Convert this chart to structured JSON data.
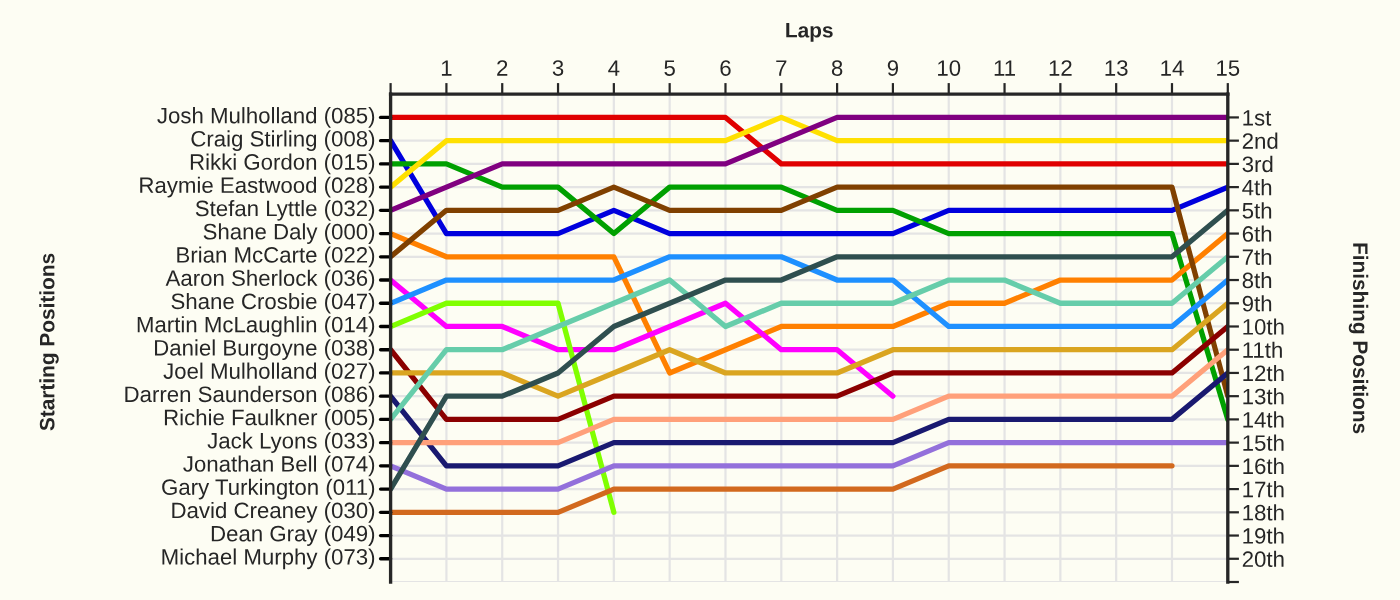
{
  "chart_data": {
    "type": "line",
    "xlabel": "Laps",
    "ylabel": "Finishing Positions",
    "annotations": [
      "Starting Positions",
      "Dean Gray (049)",
      "Michael Murphy (073)"
    ],
    "x": [
      0,
      1,
      2,
      3,
      4,
      5,
      6,
      7,
      8,
      9,
      10,
      11,
      12,
      13,
      14,
      15
    ],
    "xlim": [
      0,
      15
    ],
    "xticks": [
      {
        "value": 0,
        "label": null
      },
      1,
      2,
      3,
      4,
      5,
      6,
      7,
      8,
      9,
      10,
      11,
      12,
      13,
      14,
      15
    ],
    "ylim": [
      21,
      0
    ],
    "yticks": [
      {
        "value": 1,
        "label": "1st"
      },
      {
        "value": 2,
        "label": "2nd"
      },
      {
        "value": 3,
        "label": "3rd"
      },
      {
        "value": 4,
        "label": "4th"
      },
      {
        "value": 5,
        "label": "5th"
      },
      {
        "value": 6,
        "label": "6th"
      },
      {
        "value": 7,
        "label": "7th"
      },
      {
        "value": 8,
        "label": "8th"
      },
      {
        "value": 9,
        "label": "9th"
      },
      {
        "value": 10,
        "label": "10th"
      },
      {
        "value": 11,
        "label": "11th"
      },
      {
        "value": 12,
        "label": "12th"
      },
      {
        "value": 13,
        "label": "13th"
      },
      {
        "value": 14,
        "label": "14th"
      },
      {
        "value": 15,
        "label": "15th"
      },
      {
        "value": 16,
        "label": "16th"
      },
      {
        "value": 17,
        "label": "17th"
      },
      {
        "value": 18,
        "label": "18th"
      },
      {
        "value": 19,
        "label": "19th"
      },
      {
        "value": 20,
        "label": "20th"
      },
      {
        "value": 21,
        "label": null
      }
    ],
    "grid": true,
    "series": [
      {
        "name": "Josh Mulholland (085)",
        "color": "#e00000",
        "values": [
          1,
          1,
          1,
          1,
          1,
          1,
          1,
          3,
          3,
          3,
          3,
          3,
          3,
          3,
          3,
          3
        ]
      },
      {
        "name": "Craig Stirling (008)",
        "color": "#0000dd",
        "values": [
          2,
          6,
          6,
          6,
          5,
          6,
          6,
          6,
          6,
          6,
          5,
          5,
          5,
          5,
          5,
          4
        ]
      },
      {
        "name": "Rikki Gordon (015)",
        "color": "#00a000",
        "values": [
          3,
          3,
          4,
          4,
          6,
          4,
          4,
          4,
          5,
          5,
          6,
          6,
          6,
          6,
          6,
          14
        ]
      },
      {
        "name": "Raymie Eastwood (028)",
        "color": "#ffe000",
        "values": [
          4,
          2,
          2,
          2,
          2,
          2,
          2,
          1,
          2,
          2,
          2,
          2,
          2,
          2,
          2,
          2
        ]
      },
      {
        "name": "Stefan Lyttle (032)",
        "color": "#800080",
        "values": [
          5,
          4,
          3,
          3,
          3,
          3,
          3,
          2,
          1,
          1,
          1,
          1,
          1,
          1,
          1,
          1
        ]
      },
      {
        "name": "Shane Daly (000)",
        "color": "#ff8000",
        "values": [
          6,
          7,
          7,
          7,
          7,
          12,
          11,
          10,
          10,
          10,
          9,
          9,
          8,
          8,
          8,
          6
        ]
      },
      {
        "name": "Brian McCarte (022)",
        "color": "#804000",
        "values": [
          7,
          5,
          5,
          5,
          4,
          5,
          5,
          5,
          4,
          4,
          4,
          4,
          4,
          4,
          4,
          13
        ]
      },
      {
        "name": "Aaron Sherlock (036)",
        "color": "#ff00ff",
        "values": [
          8,
          10,
          10,
          11,
          11,
          10,
          9,
          11,
          11,
          13,
          null,
          null,
          null,
          null,
          null,
          null
        ]
      },
      {
        "name": "Shane Crosbie (047)",
        "color": "#1e90ff",
        "values": [
          9,
          8,
          8,
          8,
          8,
          7,
          7,
          7,
          8,
          8,
          10,
          10,
          10,
          10,
          10,
          8
        ]
      },
      {
        "name": "Martin McLaughlin (014)",
        "color": "#80ff00",
        "values": [
          10,
          9,
          9,
          9,
          18,
          null,
          null,
          null,
          null,
          null,
          null,
          null,
          null,
          null,
          null,
          null
        ]
      },
      {
        "name": "Daniel Burgoyne (038)",
        "color": "#8b0000",
        "values": [
          11,
          14,
          14,
          14,
          13,
          13,
          13,
          13,
          13,
          12,
          12,
          12,
          12,
          12,
          12,
          10
        ]
      },
      {
        "name": "Joel Mulholland (027)",
        "color": "#daa520",
        "values": [
          12,
          12,
          12,
          13,
          12,
          11,
          12,
          12,
          12,
          11,
          11,
          11,
          11,
          11,
          11,
          9
        ]
      },
      {
        "name": "Darren Saunderson (086)",
        "color": "#191970",
        "values": [
          13,
          16,
          16,
          16,
          15,
          15,
          15,
          15,
          15,
          15,
          14,
          14,
          14,
          14,
          14,
          12
        ]
      },
      {
        "name": "Richie Faulkner (005)",
        "color": "#66cdaa",
        "values": [
          14,
          11,
          11,
          10,
          9,
          8,
          10,
          9,
          9,
          9,
          8,
          8,
          9,
          9,
          9,
          7
        ]
      },
      {
        "name": "Jack Lyons (033)",
        "color": "#ffa07a",
        "values": [
          15,
          15,
          15,
          15,
          14,
          14,
          14,
          14,
          14,
          14,
          13,
          13,
          13,
          13,
          13,
          11
        ]
      },
      {
        "name": "Jonathan Bell (074)",
        "color": "#9370db",
        "values": [
          16,
          17,
          17,
          17,
          16,
          16,
          16,
          16,
          16,
          16,
          15,
          15,
          15,
          15,
          15,
          15
        ]
      },
      {
        "name": "Gary Turkington (011)",
        "color": "#2f4f4f",
        "values": [
          17,
          13,
          13,
          12,
          10,
          9,
          8,
          8,
          7,
          7,
          7,
          7,
          7,
          7,
          7,
          5
        ]
      },
      {
        "name": "David Creaney (030)",
        "color": "#d2691e",
        "values": [
          18,
          18,
          18,
          18,
          17,
          17,
          17,
          17,
          17,
          17,
          16,
          16,
          16,
          16,
          16,
          null
        ]
      }
    ]
  }
}
